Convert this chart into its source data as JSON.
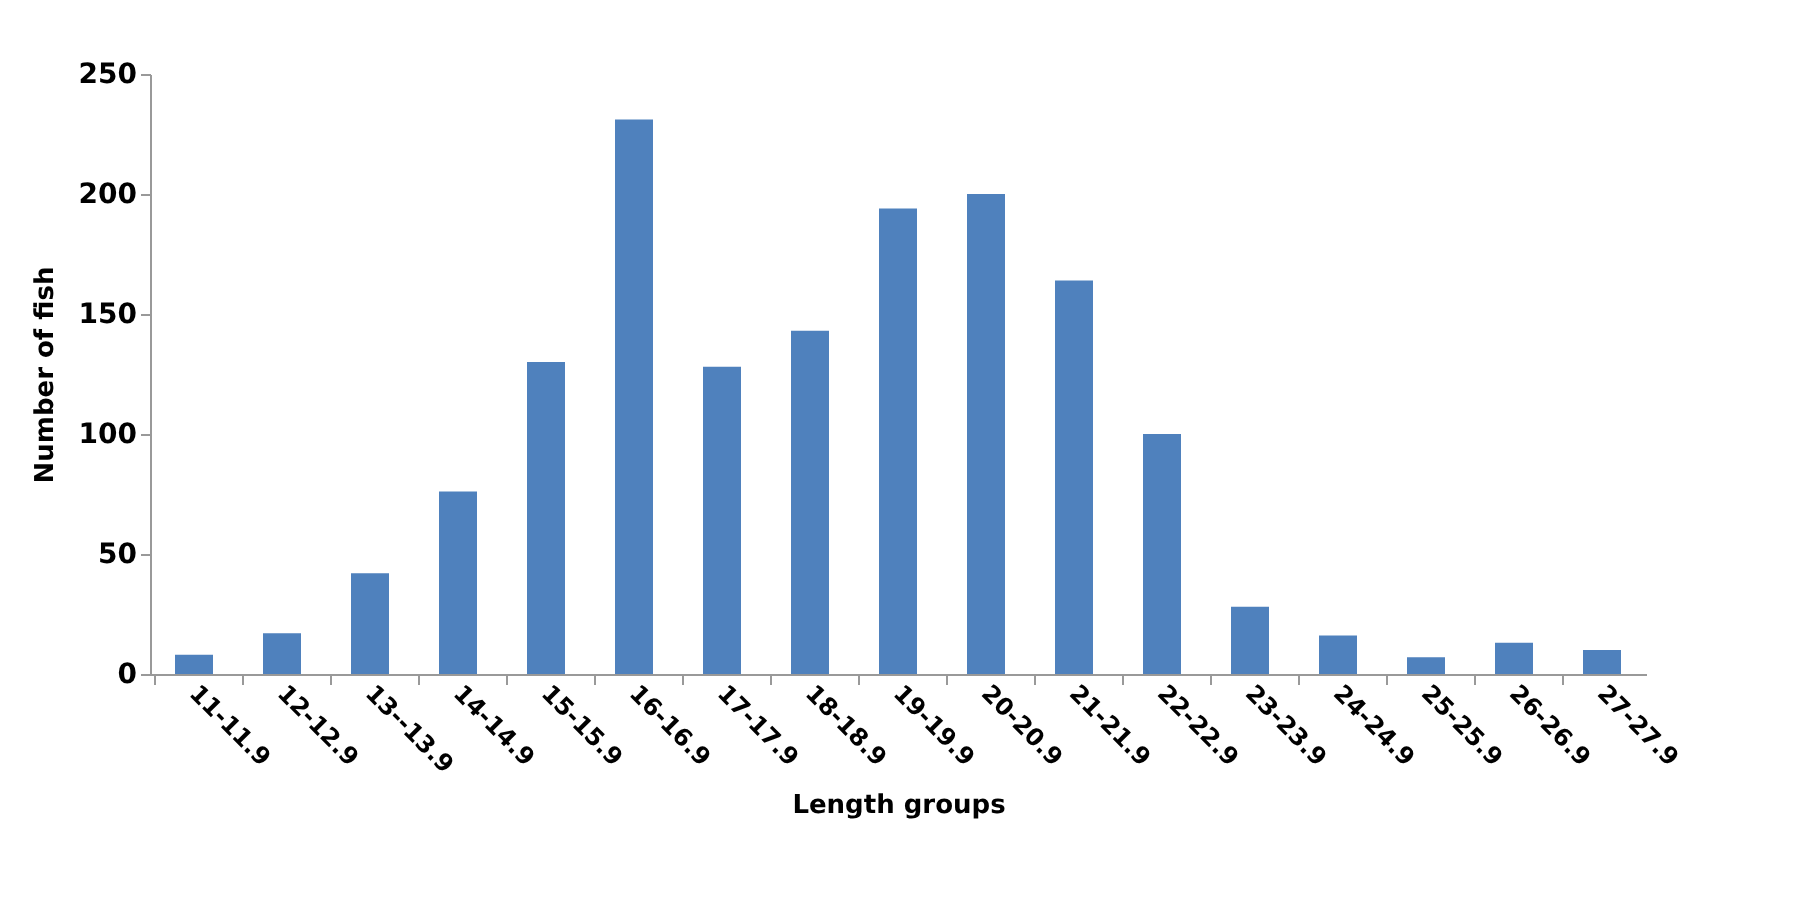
{
  "chart_data": {
    "type": "bar",
    "xlabel": "Length groups",
    "ylabel": "Number of fish",
    "categories": [
      "11-11.9",
      "12-12.9",
      "13--13.9",
      "14-14.9",
      "15-15.9",
      "16-16.9",
      "17-17.9",
      "18-18.9",
      "19-19.9",
      "20-20.9",
      "21-21.9",
      "22-22.9",
      "23-23.9",
      "24-24.9",
      "25-25.9",
      "26-26.9",
      "27-27.9"
    ],
    "values": [
      8,
      17,
      42,
      76,
      130,
      231,
      128,
      143,
      194,
      200,
      164,
      100,
      28,
      16,
      7,
      13,
      10
    ],
    "color": "#4f81bd",
    "ylim": [
      0,
      250
    ],
    "yticks": [
      0,
      50,
      100,
      150,
      200,
      250
    ],
    "grid": false
  }
}
